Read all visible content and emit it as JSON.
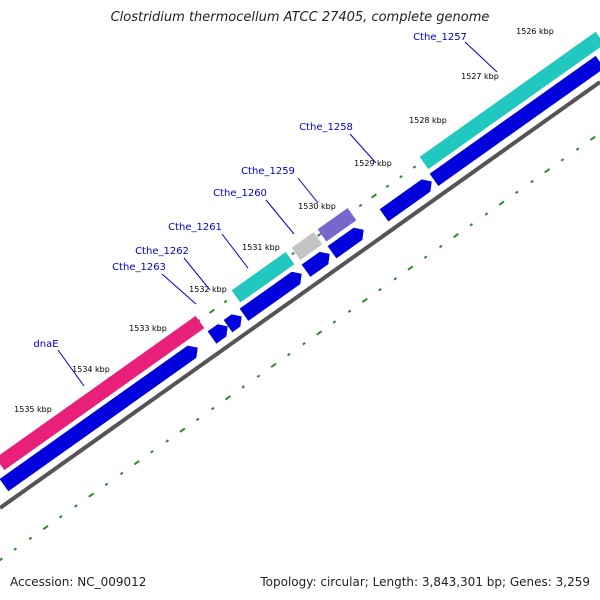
{
  "title": "Clostridium thermocellum ATCC 27405, complete genome",
  "footer": {
    "accession": "Accession: NC_009012",
    "topology": "Topology: circular; Length: 3,843,301 bp; Genes: 3,259"
  },
  "colors": {
    "tick": "#2e8b2e",
    "backbone": "#555555",
    "cds": "#0000dd",
    "teal_gene": "#20c8c0",
    "pink_gene": "#e8207a",
    "purple_gene": "#7766cc",
    "gray_gene": "#c4c4c4",
    "gene_label": "#0000cc"
  },
  "ticks": [
    {
      "label": "1526 kbp"
    },
    {
      "label": "1527 kbp"
    },
    {
      "label": "1528 kbp"
    },
    {
      "label": "1529 kbp"
    },
    {
      "label": "1530 kbp"
    },
    {
      "label": "1531 kbp"
    },
    {
      "label": "1532 kbp"
    },
    {
      "label": "1533 kbp"
    },
    {
      "label": "1534 kbp"
    },
    {
      "label": "1535 kbp"
    }
  ],
  "genes": [
    {
      "name": "Cthe_1257",
      "color": "teal"
    },
    {
      "name": "Cthe_1258",
      "color": "teal"
    },
    {
      "name": "Cthe_1259",
      "color": "purple"
    },
    {
      "name": "Cthe_1260",
      "color": "gray"
    },
    {
      "name": "Cthe_1261",
      "color": "teal"
    },
    {
      "name": "Cthe_1262",
      "color": "none"
    },
    {
      "name": "Cthe_1263",
      "color": "none"
    },
    {
      "name": "dnaE",
      "color": "pink"
    }
  ]
}
